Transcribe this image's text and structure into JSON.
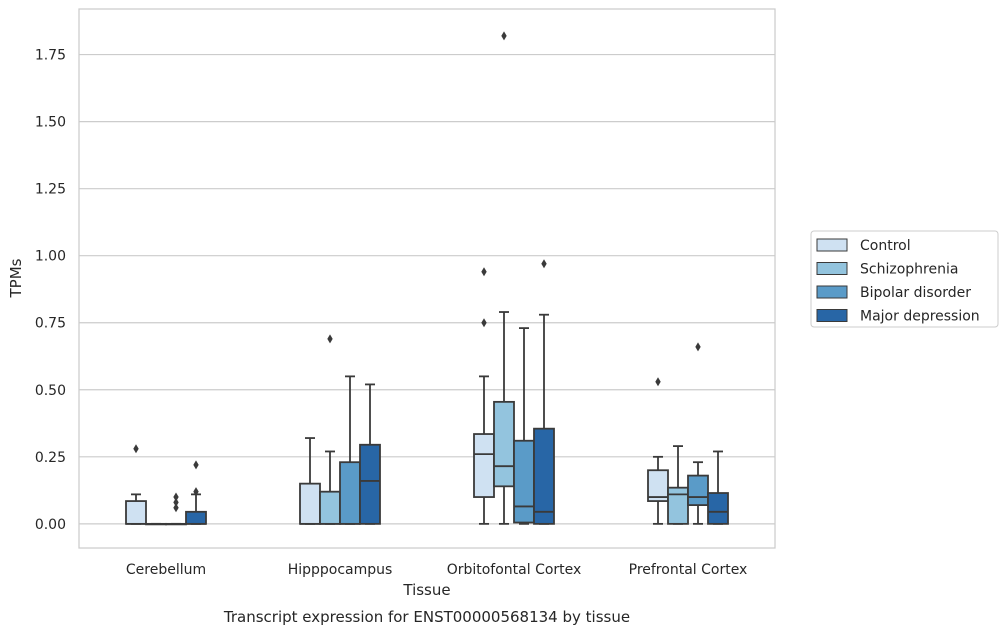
{
  "caption": "Transcript expression for ENST00000568134 by tissue",
  "chart_data": {
    "type": "boxplot",
    "xlabel": "Tissue",
    "ylabel": "TPMs",
    "ylim": [
      -0.09,
      1.92
    ],
    "yticks": [
      0.0,
      0.25,
      0.5,
      0.75,
      1.0,
      1.25,
      1.5,
      1.75
    ],
    "ytick_labels": [
      "0.00",
      "0.25",
      "0.50",
      "0.75",
      "1.00",
      "1.25",
      "1.50",
      "1.75"
    ],
    "grid": true,
    "legend_position": "right",
    "categories": [
      "Cerebellum",
      "Hipppocampus",
      "Orbitofontal Cortex",
      "Prefrontal Cortex"
    ],
    "series": [
      {
        "name": "Control",
        "color": "#cfe1f2",
        "boxes": [
          {
            "q1": 0.0,
            "median": 0.0,
            "q3": 0.085,
            "whislo": 0.0,
            "whishi": 0.11,
            "fliers": [
              0.28
            ]
          },
          {
            "q1": 0.0,
            "median": 0.0,
            "q3": 0.15,
            "whislo": 0.0,
            "whishi": 0.32,
            "fliers": []
          },
          {
            "q1": 0.1,
            "median": 0.26,
            "q3": 0.335,
            "whislo": 0.0,
            "whishi": 0.55,
            "fliers": [
              0.75,
              0.94
            ]
          },
          {
            "q1": 0.085,
            "median": 0.1,
            "q3": 0.2,
            "whislo": 0.0,
            "whishi": 0.25,
            "fliers": [
              0.53
            ]
          }
        ]
      },
      {
        "name": "Schizophrenia",
        "color": "#93c4de",
        "boxes": [
          {
            "q1": 0.0,
            "median": 0.0,
            "q3": 0.0,
            "whislo": 0.0,
            "whishi": 0.0,
            "fliers": []
          },
          {
            "q1": 0.0,
            "median": 0.0,
            "q3": 0.12,
            "whislo": 0.0,
            "whishi": 0.27,
            "fliers": [
              0.69
            ]
          },
          {
            "q1": 0.14,
            "median": 0.215,
            "q3": 0.455,
            "whislo": 0.0,
            "whishi": 0.79,
            "fliers": [
              1.82
            ]
          },
          {
            "q1": 0.0,
            "median": 0.11,
            "q3": 0.135,
            "whislo": 0.0,
            "whishi": 0.29,
            "fliers": []
          }
        ]
      },
      {
        "name": "Bipolar disorder",
        "color": "#5a9bc8",
        "boxes": [
          {
            "q1": 0.0,
            "median": 0.0,
            "q3": 0.0,
            "whislo": 0.0,
            "whishi": 0.0,
            "fliers": [
              0.06,
              0.08,
              0.1
            ]
          },
          {
            "q1": 0.0,
            "median": 0.0,
            "q3": 0.23,
            "whislo": 0.0,
            "whishi": 0.55,
            "fliers": []
          },
          {
            "q1": 0.005,
            "median": 0.065,
            "q3": 0.31,
            "whislo": 0.0,
            "whishi": 0.73,
            "fliers": []
          },
          {
            "q1": 0.07,
            "median": 0.1,
            "q3": 0.18,
            "whislo": 0.0,
            "whishi": 0.23,
            "fliers": [
              0.66
            ]
          }
        ]
      },
      {
        "name": "Major depression",
        "color": "#2866a6",
        "boxes": [
          {
            "q1": 0.0,
            "median": 0.0,
            "q3": 0.045,
            "whislo": 0.0,
            "whishi": 0.11,
            "fliers": [
              0.12,
              0.22
            ]
          },
          {
            "q1": 0.0,
            "median": 0.16,
            "q3": 0.295,
            "whislo": 0.0,
            "whishi": 0.52,
            "fliers": []
          },
          {
            "q1": 0.0,
            "median": 0.045,
            "q3": 0.355,
            "whislo": 0.0,
            "whishi": 0.78,
            "fliers": [
              0.97
            ]
          },
          {
            "q1": 0.0,
            "median": 0.045,
            "q3": 0.115,
            "whislo": 0.0,
            "whishi": 0.27,
            "fliers": []
          }
        ]
      }
    ]
  }
}
